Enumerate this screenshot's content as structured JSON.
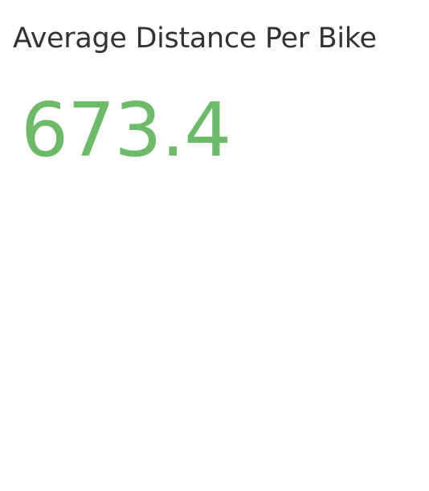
{
  "card": {
    "title": "Average Distance Per Bike",
    "value": "673.4",
    "value_color": "#6dba68",
    "title_color": "#333333"
  }
}
